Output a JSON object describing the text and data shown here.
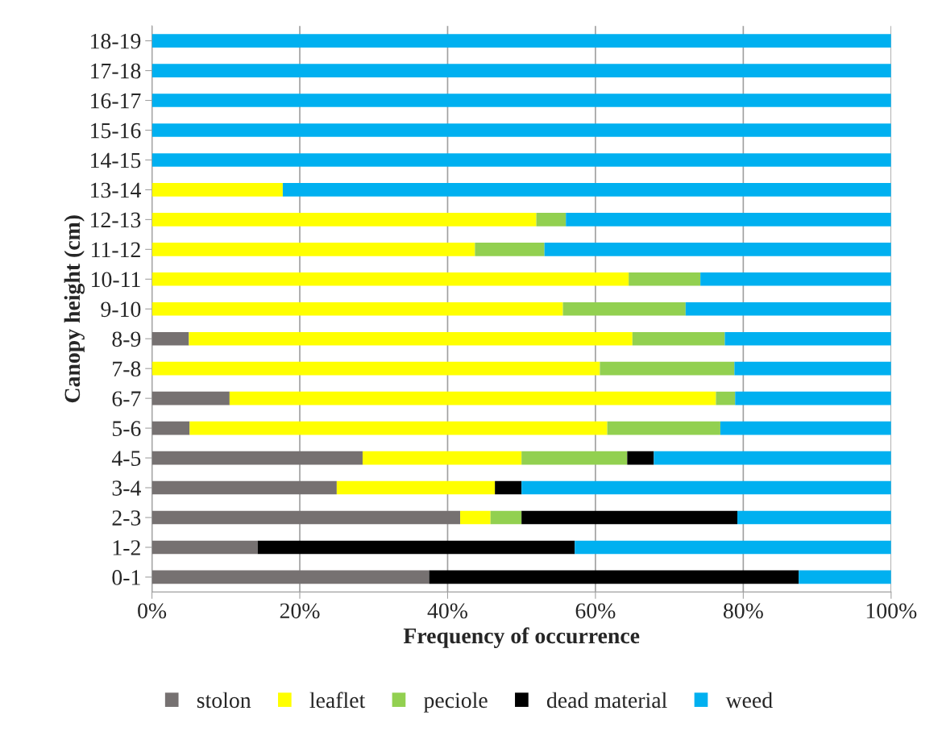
{
  "chart_data": {
    "type": "bar",
    "orientation": "horizontal",
    "stacked": true,
    "xlabel": "Frequency of occurrence",
    "ylabel": "Canopy height (cm)",
    "categories": [
      "18-19",
      "17-18",
      "16-17",
      "15-16",
      "14-15",
      "13-14",
      "12-13",
      "11-12",
      "10-11",
      "9-10",
      "8-9",
      "7-8",
      "6-7",
      "5-6",
      "4-5",
      "3-4",
      "2-3",
      "1-2",
      "0-1"
    ],
    "series": [
      {
        "name": "stolon",
        "color": "#767171",
        "values": [
          0,
          0,
          0,
          0,
          0,
          0,
          0,
          0,
          0,
          0,
          5.0,
          0,
          10.5,
          5.1,
          28.5,
          25.0,
          41.7,
          14.3,
          37.5
        ]
      },
      {
        "name": "leaflet",
        "color": "#ffff00",
        "values": [
          0,
          0,
          0,
          0,
          0,
          17.7,
          52.0,
          43.7,
          64.5,
          55.6,
          60.0,
          60.6,
          65.8,
          56.5,
          21.5,
          21.4,
          4.1,
          0,
          0
        ]
      },
      {
        "name": "peciole",
        "color": "#92d050",
        "values": [
          0,
          0,
          0,
          0,
          0,
          0,
          4.0,
          9.4,
          9.7,
          16.6,
          12.5,
          18.2,
          2.6,
          15.3,
          14.3,
          0,
          4.2,
          0,
          0
        ]
      },
      {
        "name": "dead material",
        "color": "#000000",
        "values": [
          0,
          0,
          0,
          0,
          0,
          0,
          0,
          0,
          0,
          0,
          0,
          0,
          0,
          0,
          3.6,
          3.6,
          29.2,
          42.9,
          50.0
        ]
      },
      {
        "name": "weed",
        "color": "#00b0f0",
        "values": [
          100,
          100,
          100,
          100,
          100,
          82.3,
          44.0,
          46.9,
          25.8,
          27.8,
          22.5,
          21.2,
          21.1,
          23.1,
          32.1,
          50.0,
          20.8,
          42.8,
          12.5
        ]
      }
    ],
    "xlim": [
      0,
      100
    ],
    "xticks": [
      {
        "value": 0,
        "label": "0%"
      },
      {
        "value": 20,
        "label": "20%"
      },
      {
        "value": 40,
        "label": "40%"
      },
      {
        "value": 60,
        "label": "60%"
      },
      {
        "value": 80,
        "label": "80%"
      },
      {
        "value": 100,
        "label": "100%"
      }
    ],
    "grid": "x",
    "legend": "bottom"
  }
}
